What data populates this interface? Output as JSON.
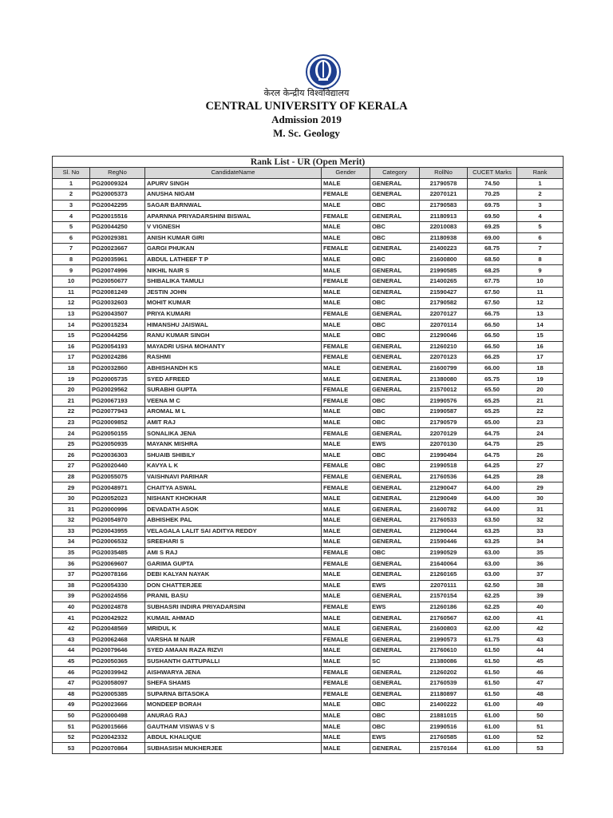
{
  "header": {
    "hindi_name": "केरल केन्द्रीय विश्वविद्यालय",
    "university": "CENTRAL UNIVERSITY OF KERALA",
    "admission": "Admission 2019",
    "programme": "M. Sc. Geology"
  },
  "table": {
    "title": "Rank List - UR (Open Merit)",
    "columns": [
      "Sl. No",
      "RegNo",
      "CandidateName",
      "Gender",
      "Category",
      "RollNo",
      "CUCET Marks",
      "Rank"
    ],
    "rows": [
      [
        "1",
        "PG20009324",
        "APURV SINGH",
        "MALE",
        "GENERAL",
        "21790578",
        "74.50",
        "1"
      ],
      [
        "2",
        "PG20005373",
        "ANUSHA NIGAM",
        "FEMALE",
        "GENERAL",
        "22070121",
        "70.25",
        "2"
      ],
      [
        "3",
        "PG20042295",
        "SAGAR BARNWAL",
        "MALE",
        "OBC",
        "21790583",
        "69.75",
        "3"
      ],
      [
        "4",
        "PG20015516",
        "APARNNA PRIYADARSHINI BISWAL",
        "FEMALE",
        "GENERAL",
        "21180913",
        "69.50",
        "4"
      ],
      [
        "5",
        "PG20044250",
        "V VIGNESH",
        "MALE",
        "OBC",
        "22010083",
        "69.25",
        "5"
      ],
      [
        "6",
        "PG20029381",
        "ANISH KUMAR GIRI",
        "MALE",
        "OBC",
        "21180938",
        "69.00",
        "6"
      ],
      [
        "7",
        "PG20023667",
        "GARGI PHUKAN",
        "FEMALE",
        "GENERAL",
        "21400223",
        "68.75",
        "7"
      ],
      [
        "8",
        "PG20035961",
        "ABDUL LATHEEF T P",
        "MALE",
        "OBC",
        "21600800",
        "68.50",
        "8"
      ],
      [
        "9",
        "PG20074996",
        "NIKHIL NAIR S",
        "MALE",
        "GENERAL",
        "21990585",
        "68.25",
        "9"
      ],
      [
        "10",
        "PG20050677",
        "SHIBALIKA TAMULI",
        "FEMALE",
        "GENERAL",
        "21400265",
        "67.75",
        "10"
      ],
      [
        "11",
        "PG20081249",
        "JESTIN JOHN",
        "MALE",
        "GENERAL",
        "21590427",
        "67.50",
        "11"
      ],
      [
        "12",
        "PG20032603",
        "MOHIT KUMAR",
        "MALE",
        "OBC",
        "21790582",
        "67.50",
        "12"
      ],
      [
        "13",
        "PG20043507",
        "PRIYA KUMARI",
        "FEMALE",
        "GENERAL",
        "22070127",
        "66.75",
        "13"
      ],
      [
        "14",
        "PG20015234",
        "HIMANSHU JAISWAL",
        "MALE",
        "OBC",
        "22070114",
        "66.50",
        "14"
      ],
      [
        "15",
        "PG20044256",
        "RANU KUMAR SINGH",
        "MALE",
        "OBC",
        "21290046",
        "66.50",
        "15"
      ],
      [
        "16",
        "PG20054193",
        "MAYADRI USHA MOHANTY",
        "FEMALE",
        "GENERAL",
        "21260210",
        "66.50",
        "16"
      ],
      [
        "17",
        "PG20024286",
        "RASHMI",
        "FEMALE",
        "GENERAL",
        "22070123",
        "66.25",
        "17"
      ],
      [
        "18",
        "PG20032860",
        "ABHISHANDH KS",
        "MALE",
        "GENERAL",
        "21600799",
        "66.00",
        "18"
      ],
      [
        "19",
        "PG20005735",
        "SYED AFREED",
        "MALE",
        "GENERAL",
        "21380080",
        "65.75",
        "19"
      ],
      [
        "20",
        "PG20029562",
        "SURABHI GUPTA",
        "FEMALE",
        "GENERAL",
        "21570012",
        "65.50",
        "20"
      ],
      [
        "21",
        "PG20067193",
        "VEENA M C",
        "FEMALE",
        "OBC",
        "21990576",
        "65.25",
        "21"
      ],
      [
        "22",
        "PG20077943",
        "AROMAL M L",
        "MALE",
        "OBC",
        "21990587",
        "65.25",
        "22"
      ],
      [
        "23",
        "PG20009852",
        "AMIT RAJ",
        "MALE",
        "OBC",
        "21790579",
        "65.00",
        "23"
      ],
      [
        "24",
        "PG20050155",
        "SONALIKA JENA",
        "FEMALE",
        "GENERAL",
        "22070129",
        "64.75",
        "24"
      ],
      [
        "25",
        "PG20050935",
        "MAYANK MISHRA",
        "MALE",
        "EWS",
        "22070130",
        "64.75",
        "25"
      ],
      [
        "26",
        "PG20036303",
        "SHUAIB SHIBILY",
        "MALE",
        "OBC",
        "21990494",
        "64.75",
        "26"
      ],
      [
        "27",
        "PG20020440",
        "KAVYA L K",
        "FEMALE",
        "OBC",
        "21990518",
        "64.25",
        "27"
      ],
      [
        "28",
        "PG20055075",
        "VAISHNAVI PARIHAR",
        "FEMALE",
        "GENERAL",
        "21760536",
        "64.25",
        "28"
      ],
      [
        "29",
        "PG20048971",
        "CHAITYA ASWAL",
        "FEMALE",
        "GENERAL",
        "21290047",
        "64.00",
        "29"
      ],
      [
        "30",
        "PG20052023",
        "NISHANT KHOKHAR",
        "MALE",
        "GENERAL",
        "21290049",
        "64.00",
        "30"
      ],
      [
        "31",
        "PG20000996",
        "DEVADATH ASOK",
        "MALE",
        "GENERAL",
        "21600782",
        "64.00",
        "31"
      ],
      [
        "32",
        "PG20054970",
        "ABHISHEK PAL",
        "MALE",
        "GENERAL",
        "21760533",
        "63.50",
        "32"
      ],
      [
        "33",
        "PG20043955",
        "VELAGALA LALIT SAI ADITYA REDDY",
        "MALE",
        "GENERAL",
        "21290044",
        "63.25",
        "33"
      ],
      [
        "34",
        "PG20006532",
        "SREEHARI S",
        "MALE",
        "GENERAL",
        "21590446",
        "63.25",
        "34"
      ],
      [
        "35",
        "PG20035485",
        "AMI S RAJ",
        "FEMALE",
        "OBC",
        "21990529",
        "63.00",
        "35"
      ],
      [
        "36",
        "PG20069607",
        "GARIMA GUPTA",
        "FEMALE",
        "GENERAL",
        "21640064",
        "63.00",
        "36"
      ],
      [
        "37",
        "PG20078166",
        "DEBI KALYAN NAYAK",
        "MALE",
        "GENERAL",
        "21260165",
        "63.00",
        "37"
      ],
      [
        "38",
        "PG20054330",
        "DON CHATTERJEE",
        "MALE",
        "EWS",
        "22070111",
        "62.50",
        "38"
      ],
      [
        "39",
        "PG20024556",
        "PRANIL BASU",
        "MALE",
        "GENERAL",
        "21570154",
        "62.25",
        "39"
      ],
      [
        "40",
        "PG20024878",
        "SUBHASRI INDIRA PRIYADARSINI",
        "FEMALE",
        "EWS",
        "21260186",
        "62.25",
        "40"
      ],
      [
        "41",
        "PG20042922",
        "KUMAIL AHMAD",
        "MALE",
        "GENERAL",
        "21760567",
        "62.00",
        "41"
      ],
      [
        "42",
        "PG20048569",
        "MRIDUL K",
        "MALE",
        "GENERAL",
        "21600803",
        "62.00",
        "42"
      ],
      [
        "43",
        "PG20062468",
        "VARSHA M NAIR",
        "FEMALE",
        "GENERAL",
        "21990573",
        "61.75",
        "43"
      ],
      [
        "44",
        "PG20079646",
        "SYED AMAAN RAZA RIZVI",
        "MALE",
        "GENERAL",
        "21760610",
        "61.50",
        "44"
      ],
      [
        "45",
        "PG20050365",
        "SUSHANTH GATTUPALLI",
        "MALE",
        "SC",
        "21380086",
        "61.50",
        "45"
      ],
      [
        "46",
        "PG20039942",
        "AISHWARYA JENA",
        "FEMALE",
        "GENERAL",
        "21260202",
        "61.50",
        "46"
      ],
      [
        "47",
        "PG20058097",
        "SHEFA SHAMS",
        "FEMALE",
        "GENERAL",
        "21760539",
        "61.50",
        "47"
      ],
      [
        "48",
        "PG20005385",
        "SUPARNA BITASOKA",
        "FEMALE",
        "GENERAL",
        "21180897",
        "61.50",
        "48"
      ],
      [
        "49",
        "PG20023666",
        "MONDEEP BORAH",
        "MALE",
        "OBC",
        "21400222",
        "61.00",
        "49"
      ],
      [
        "50",
        "PG20000498",
        "ANURAG RAJ",
        "MALE",
        "OBC",
        "21881015",
        "61.00",
        "50"
      ],
      [
        "51",
        "PG20015666",
        "GAUTHAM VISWAS V S",
        "MALE",
        "OBC",
        "21990516",
        "61.00",
        "51"
      ],
      [
        "52",
        "PG20042332",
        "ABDUL KHALIQUE",
        "MALE",
        "EWS",
        "21760585",
        "61.00",
        "52"
      ],
      [
        "53",
        "PG20070864",
        "SUBHASISH MUKHERJEE",
        "MALE",
        "GENERAL",
        "21570164",
        "61.00",
        "53"
      ]
    ]
  },
  "colors": {
    "logo_blue": "#1f3f8f",
    "header_fill": "#d9d9d9"
  }
}
